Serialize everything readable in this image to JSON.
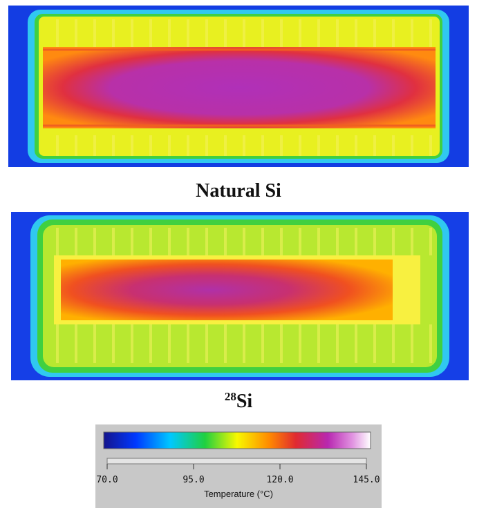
{
  "captions": {
    "natural": "Natural Si",
    "isotope": {
      "mass": "28",
      "element": "Si"
    }
  },
  "colorbar": {
    "lim": [
      70,
      145
    ],
    "ticks": [
      {
        "value": 70,
        "label": "70.0"
      },
      {
        "value": 95,
        "label": "95.0"
      },
      {
        "value": 120,
        "label": "120.0"
      },
      {
        "value": 145,
        "label": "145.0"
      }
    ],
    "label": "Temperature (°C)"
  }
}
